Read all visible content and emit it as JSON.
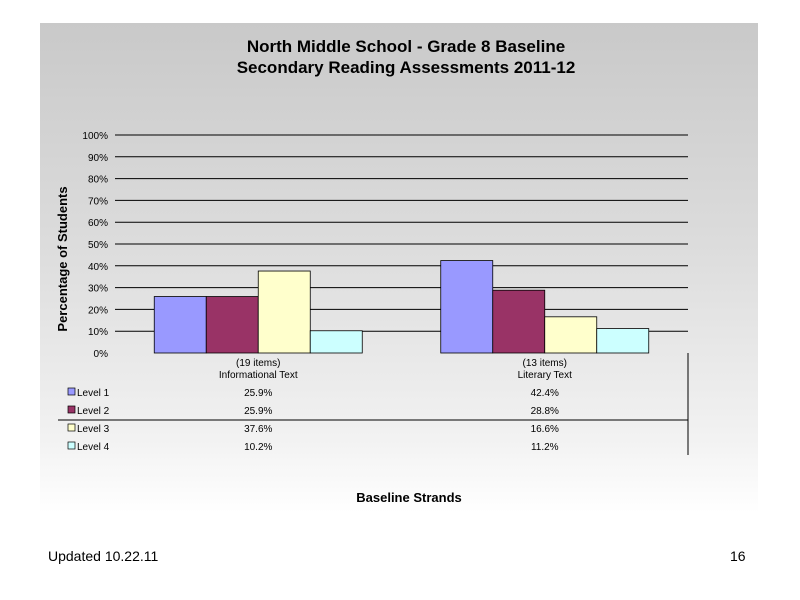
{
  "chart_data": {
    "type": "bar",
    "title": "North Middle School - Grade 8 Baseline",
    "subtitle": "Secondary Reading Assessments 2011-12",
    "ylabel": "Percentage of Students",
    "xlabel": "Baseline Strands",
    "ylim": [
      0,
      100
    ],
    "yticks": [
      "0%",
      "10%",
      "20%",
      "30%",
      "40%",
      "50%",
      "60%",
      "70%",
      "80%",
      "90%",
      "100%"
    ],
    "categories": [
      {
        "count": "(19 items)",
        "name": "Informational Text"
      },
      {
        "count": "(13 items)",
        "name": "Literary Text"
      }
    ],
    "series": [
      {
        "name": "Level 1",
        "color": "#9999ff",
        "values": [
          25.9,
          42.4
        ],
        "labels": [
          "25.9%",
          "42.4%"
        ]
      },
      {
        "name": "Level 2",
        "color": "#993366",
        "values": [
          25.9,
          28.8
        ],
        "labels": [
          "25.9%",
          "28.8%"
        ]
      },
      {
        "name": "Level 3",
        "color": "#ffffcc",
        "values": [
          37.6,
          16.6
        ],
        "labels": [
          "37.6%",
          "16.6%"
        ]
      },
      {
        "name": "Level 4",
        "color": "#ccffff",
        "values": [
          10.2,
          11.2
        ],
        "labels": [
          "10.2%",
          "11.2%"
        ]
      }
    ],
    "grid": true,
    "legend": "data-table-left"
  },
  "footer": {
    "updated": "Updated  10.22.11",
    "page_number": "16"
  }
}
